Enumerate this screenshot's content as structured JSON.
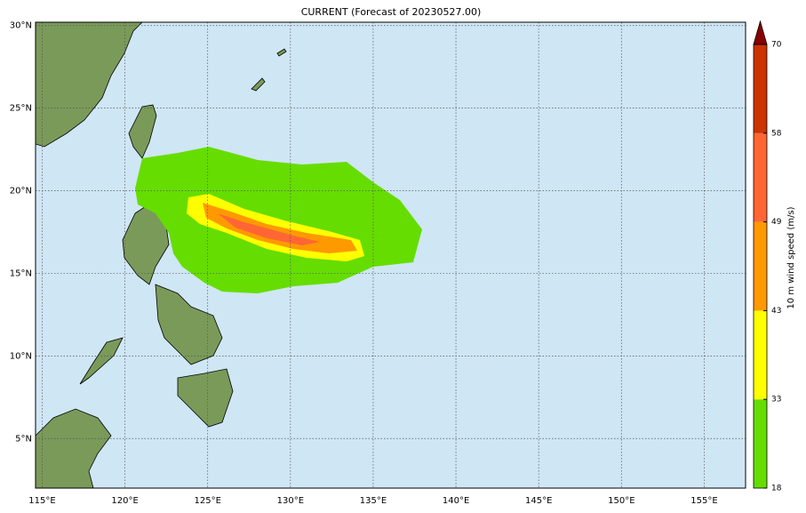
{
  "chart_data": {
    "type": "map",
    "title": "CURRENT (Forecast of 20230527.00)",
    "xlim": [
      114.6,
      157.5
    ],
    "ylim": [
      2,
      30.2
    ],
    "xticks": [
      {
        "value": 115,
        "label": "115°E"
      },
      {
        "value": 120,
        "label": "120°E"
      },
      {
        "value": 125,
        "label": "125°E"
      },
      {
        "value": 130,
        "label": "130°E"
      },
      {
        "value": 135,
        "label": "135°E"
      },
      {
        "value": 140,
        "label": "140°E"
      },
      {
        "value": 145,
        "label": "145°E"
      },
      {
        "value": 150,
        "label": "150°E"
      },
      {
        "value": 155,
        "label": "155°E"
      }
    ],
    "yticks": [
      {
        "value": 5,
        "label": "5°N"
      },
      {
        "value": 10,
        "label": "10°N"
      },
      {
        "value": 15,
        "label": "15°N"
      },
      {
        "value": 20,
        "label": "20°N"
      },
      {
        "value": 25,
        "label": "25°N"
      },
      {
        "value": 30,
        "label": "30°N"
      }
    ],
    "grid": true,
    "colorbar": {
      "label": "10 m wind speed (m/s)",
      "ticks": [
        18,
        33,
        43,
        49,
        58,
        70
      ],
      "colors": [
        "#66dd00",
        "#ffff00",
        "#ff9900",
        "#ff6633",
        "#cc3300"
      ],
      "extend_color": "#880000"
    }
  }
}
